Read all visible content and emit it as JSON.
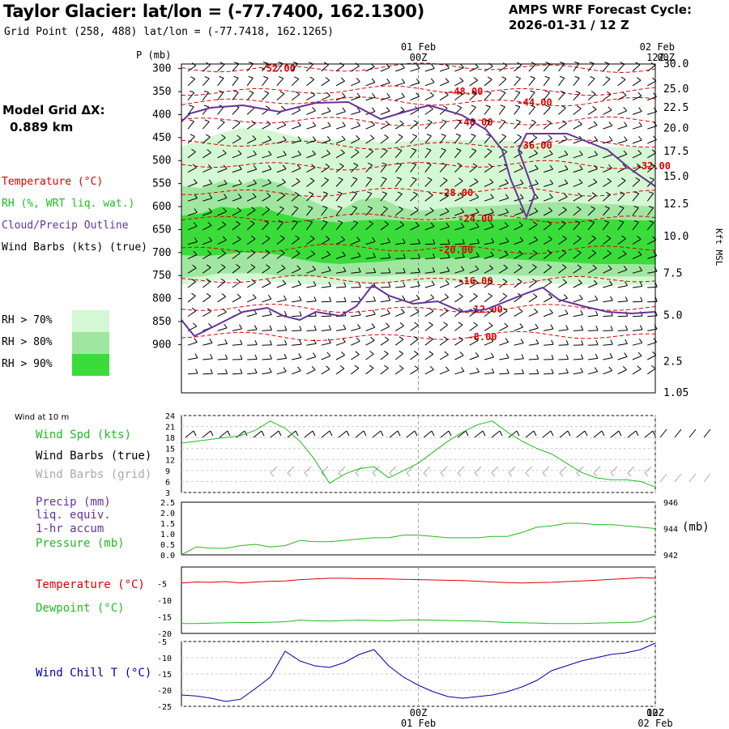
{
  "header": {
    "title": "Taylor Glacier:  lat/lon = (-77.7400, 162.1300)",
    "subtitle": "Grid Point (258, 488) lat/lon = (-77.7418, 162.1265)",
    "cycle_line1": "AMPS WRF Forecast Cycle:",
    "cycle_line2": "2026-01-31 / 12  Z"
  },
  "time_axis": {
    "top_labels": [
      {
        "date": "01 Feb",
        "hour": "00Z"
      },
      {
        "date": "",
        "hour": "12Z"
      },
      {
        "date": "02 Feb",
        "hour": "00Z"
      }
    ],
    "bottom_labels": [
      {
        "hour": "00Z",
        "date": "01 Feb"
      },
      {
        "hour": "12Z",
        "date": ""
      },
      {
        "hour": "00Z",
        "date": "02 Feb"
      }
    ],
    "hours": [
      -12,
      12
    ]
  },
  "legend": {
    "p_label": "P (mb)",
    "grid_label": "Model Grid ΔX:",
    "grid_value": "0.889 km",
    "temperature": "Temperature (°C)",
    "rh": "RH (%, WRT liq. wat.)",
    "cloud": "Cloud/Precip Outline",
    "wind": "Wind Barbs (kts) (true)",
    "rh_levels": [
      {
        "label": "RH > 70%",
        "color": "#d4f7d4"
      },
      {
        "label": "RH > 80%",
        "color": "#a0e6a0"
      },
      {
        "label": "RH > 90%",
        "color": "#3adc3a"
      }
    ],
    "colors": {
      "temperature": "#dd0000",
      "rh": "#22bb22",
      "cloud": "#663399",
      "wind": "#000000",
      "wind_grid": "#aaaaaa"
    }
  },
  "chart_data": [
    {
      "type": "contour",
      "name": "vertical-profile",
      "y_axis_left": {
        "label": "P (mb)",
        "ticks": [
          "300",
          "350",
          "400",
          "450",
          "500",
          "550",
          "600",
          "650",
          "700",
          "750",
          "800",
          "850",
          "900"
        ]
      },
      "y_axis_right": {
        "label": "Kft MSL",
        "ticks": [
          {
            "p": 290,
            "label": "30.0"
          },
          {
            "p": 345,
            "label": "25.0"
          },
          {
            "p": 385,
            "label": "22.5"
          },
          {
            "p": 430,
            "label": "20.0"
          },
          {
            "p": 480,
            "label": "17.5"
          },
          {
            "p": 535,
            "label": "15.0"
          },
          {
            "p": 595,
            "label": "12.5"
          },
          {
            "p": 665,
            "label": "10.0"
          },
          {
            "p": 745,
            "label": "7.5"
          },
          {
            "p": 837,
            "label": "5.0"
          },
          {
            "p": 937,
            "label": "2.5"
          },
          {
            "p": 1005,
            "label": "1.05"
          }
        ]
      },
      "p_range": [
        290,
        1005
      ],
      "temperature_isotherms": [
        {
          "label": "-52.00",
          "p": 298,
          "x_label_hour": -8
        },
        {
          "label": "-48.00",
          "p": 348,
          "x_label_hour": 1.5
        },
        {
          "label": "-44.00",
          "p": 372,
          "x_label_hour": 5
        },
        {
          "label": "-40.00",
          "p": 415,
          "x_label_hour": 2
        },
        {
          "label": "-36.00",
          "p": 465,
          "x_label_hour": 5
        },
        {
          "label": "-32.00",
          "p": 510,
          "x_label_hour": 11
        },
        {
          "label": "-28.00",
          "p": 568,
          "x_label_hour": 1
        },
        {
          "label": "-24.00",
          "p": 625,
          "x_label_hour": 2
        },
        {
          "label": "-20.00",
          "p": 692,
          "x_label_hour": 1
        },
        {
          "label": "-16.00",
          "p": 760,
          "x_label_hour": 2
        },
        {
          "label": "-12.00",
          "p": 822,
          "x_label_hour": 2.5
        },
        {
          "label": "-8.00",
          "p": 882,
          "x_label_hour": 2.5
        }
      ],
      "rh_bands": {
        "rh70": {
          "top": [
            470,
            455,
            440,
            430,
            430,
            440,
            450,
            455,
            455,
            455,
            460,
            460,
            455,
            455,
            455,
            455,
            455,
            460,
            465,
            465,
            470,
            470,
            470,
            470,
            475
          ],
          "bottom": [
            770,
            765,
            760,
            760,
            760,
            765,
            768,
            770,
            770,
            770,
            768,
            765,
            765,
            765,
            765,
            765,
            765,
            765,
            765,
            768,
            770,
            770,
            770,
            770,
            770
          ]
        },
        "rh80": {
          "top": [
            555,
            560,
            545,
            552,
            538,
            550,
            575,
            595,
            610,
            585,
            580,
            600,
            610,
            605,
            600,
            600,
            598,
            595,
            593,
            590,
            592,
            595,
            595,
            598,
            600
          ],
          "bottom": [
            755,
            752,
            745,
            745,
            745,
            750,
            752,
            752,
            752,
            752,
            752,
            748,
            748,
            748,
            748,
            748,
            748,
            750,
            750,
            752,
            752,
            752,
            752,
            752,
            752
          ]
        },
        "rh90": {
          "top": [
            620,
            615,
            600,
            605,
            600,
            615,
            625,
            630,
            635,
            630,
            628,
            630,
            632,
            632,
            630,
            628,
            628,
            626,
            626,
            625,
            626,
            628,
            628,
            630,
            630
          ],
          "bottom": [
            705,
            708,
            705,
            700,
            700,
            705,
            715,
            722,
            725,
            722,
            720,
            716,
            712,
            712,
            712,
            712,
            712,
            715,
            718,
            720,
            722,
            725,
            725,
            725,
            726
          ]
        }
      }
    },
    {
      "type": "line",
      "name": "wind-speed",
      "caption": "Wind at 10 m",
      "series_labels": {
        "speed": "Wind Spd (kts)",
        "barbs_true": "Wind Barbs (true)",
        "barbs_grid": "Wind Barbs (grid)"
      },
      "ylim": [
        3,
        24
      ],
      "yticks": [
        "24",
        "21",
        "18",
        "15",
        "12",
        "9",
        "6",
        "3"
      ],
      "series": [
        {
          "name": "Wind Spd (kts)",
          "color": "#22bb22",
          "values": [
            16.5,
            17.0,
            17.5,
            18.0,
            18.5,
            20.0,
            22.5,
            20.5,
            17.0,
            12.0,
            5.5,
            8.0,
            9.5,
            10.0,
            7.0,
            9.0,
            11.0,
            14.0,
            17.0,
            19.5,
            21.5,
            22.5,
            19.5,
            17.0,
            15.0,
            13.5,
            11.0,
            8.5,
            7.0,
            6.5,
            6.5,
            6.0,
            4.5
          ]
        }
      ]
    },
    {
      "type": "line",
      "name": "precip-pressure",
      "series_labels": {
        "precip": "Precip (mm)",
        "liq": "liq. equiv.",
        "accum": "1-hr accum",
        "pressure": "Pressure (mb)"
      },
      "left_ylim": [
        0,
        2.5
      ],
      "left_yticks": [
        "2.5",
        "2.0",
        "1.5",
        "1.0",
        "0.5",
        "0.0"
      ],
      "right_ylim": [
        942,
        946
      ],
      "right_yticks": [
        "946",
        "944",
        "942"
      ],
      "right_label": "(mb)",
      "series": [
        {
          "name": "Pressure (mb)",
          "color": "#22bb22",
          "values": [
            942.0,
            942.6,
            942.5,
            942.5,
            942.7,
            942.8,
            942.6,
            942.7,
            943.1,
            943.0,
            943.0,
            943.1,
            943.2,
            943.3,
            943.3,
            943.5,
            943.5,
            943.4,
            943.3,
            943.3,
            943.3,
            943.4,
            943.4,
            943.7,
            944.1,
            944.2,
            944.4,
            944.4,
            944.3,
            944.3,
            944.2,
            944.1,
            944.0
          ]
        }
      ]
    },
    {
      "type": "line",
      "name": "temperature-dewpoint",
      "series_labels": {
        "temperature": "Temperature (°C)",
        "dewpoint": "Dewpoint (°C)"
      },
      "ylim": [
        -20,
        0
      ],
      "yticks": [
        "-5",
        "-10",
        "-15",
        "-20"
      ],
      "series": [
        {
          "name": "Temperature (°C)",
          "color": "#dd0000",
          "values": [
            -4.8,
            -4.5,
            -4.6,
            -4.4,
            -4.8,
            -4.5,
            -4.3,
            -4.2,
            -3.8,
            -3.6,
            -3.4,
            -3.4,
            -3.5,
            -3.5,
            -3.6,
            -3.7,
            -3.8,
            -3.9,
            -4.0,
            -4.1,
            -4.3,
            -4.5,
            -4.7,
            -4.8,
            -4.7,
            -4.6,
            -4.4,
            -4.2,
            -4.0,
            -3.7,
            -3.5,
            -3.2,
            -3.4
          ]
        },
        {
          "name": "Dewpoint (°C)",
          "color": "#22bb22",
          "values": [
            -17.0,
            -17.0,
            -16.9,
            -16.8,
            -16.7,
            -16.7,
            -16.6,
            -16.5,
            -16.0,
            -16.2,
            -16.3,
            -16.1,
            -16.0,
            -16.1,
            -16.2,
            -16.0,
            -15.9,
            -16.0,
            -16.1,
            -16.2,
            -16.3,
            -16.5,
            -16.7,
            -16.8,
            -16.9,
            -17.0,
            -17.0,
            -17.0,
            -16.9,
            -16.8,
            -16.7,
            -16.5,
            -14.7
          ]
        }
      ]
    },
    {
      "type": "line",
      "name": "wind-chill",
      "series_labels": {
        "windchill": "Wind Chill T (°C)"
      },
      "ylim": [
        -25,
        -5
      ],
      "yticks": [
        "-5",
        "-10",
        "-15",
        "-20",
        "-25"
      ],
      "series": [
        {
          "name": "Wind Chill T (°C)",
          "color": "#0000aa",
          "values": [
            -21.5,
            -21.8,
            -22.5,
            -23.5,
            -22.8,
            -19.5,
            -16.0,
            -8.0,
            -11.0,
            -12.5,
            -13.0,
            -11.5,
            -9.0,
            -7.5,
            -12.5,
            -16.0,
            -18.5,
            -20.5,
            -22.0,
            -22.5,
            -22.0,
            -21.5,
            -20.5,
            -19.0,
            -17.0,
            -14.0,
            -12.5,
            -11.0,
            -10.0,
            -9.0,
            -8.5,
            -7.5,
            -5.5
          ]
        }
      ]
    }
  ]
}
